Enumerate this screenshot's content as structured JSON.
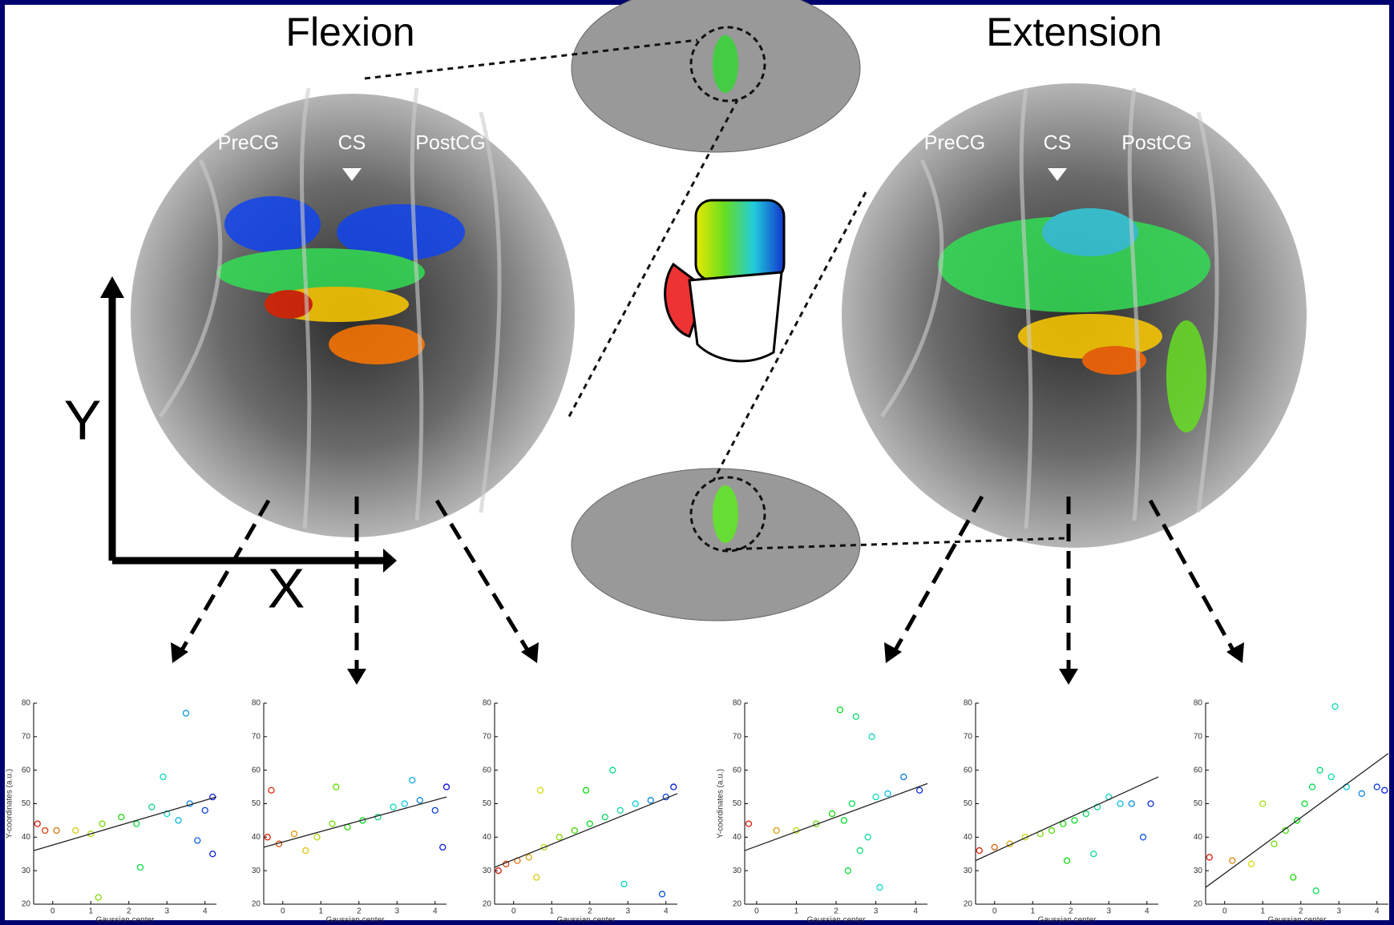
{
  "header": {
    "left_title": "Flexion",
    "right_title": "Extension"
  },
  "left_map": {
    "labels": [
      "PreCG",
      "CS",
      "PostCG"
    ]
  },
  "right_map": {
    "labels": [
      "PreCG",
      "CS",
      "PostCG"
    ]
  },
  "axes_diagram": {
    "y_label": "Y",
    "x_label": "X"
  },
  "chart_data": [
    {
      "type": "scatter",
      "xlabel": "Gaussian center",
      "ylabel": "Y-coordinates (a.u.)",
      "xlim": [
        -0.5,
        4.3
      ],
      "ylim": [
        20,
        80
      ],
      "xticks": [
        0,
        1,
        2,
        3,
        4
      ],
      "yticks": [
        20,
        30,
        40,
        50,
        60,
        70,
        80
      ],
      "x": [
        -0.4,
        -0.2,
        0.1,
        0.6,
        1.0,
        1.3,
        1.8,
        2.2,
        2.6,
        3.0,
        3.3,
        3.6,
        4.0,
        4.2,
        3.5,
        2.3,
        4.2,
        1.2,
        2.9,
        3.8
      ],
      "values": [
        44,
        42,
        42,
        42,
        41,
        44,
        46,
        44,
        49,
        47,
        45,
        50,
        48,
        52,
        77,
        31,
        35,
        22,
        58,
        39
      ],
      "fit_x": [
        -0.5,
        4.3
      ],
      "fit_y": [
        36,
        52
      ]
    },
    {
      "type": "scatter",
      "xlabel": "Gaussian center",
      "xlim": [
        -0.5,
        4.3
      ],
      "ylim": [
        20,
        80
      ],
      "xticks": [
        0,
        1,
        2,
        3,
        4
      ],
      "yticks": [
        20,
        30,
        40,
        50,
        60,
        70,
        80
      ],
      "x": [
        -0.4,
        -0.1,
        0.3,
        0.6,
        0.9,
        1.3,
        1.7,
        2.1,
        2.5,
        2.9,
        3.2,
        3.6,
        4.0,
        4.3,
        -0.3,
        1.4,
        3.4,
        4.2
      ],
      "values": [
        40,
        38,
        41,
        36,
        40,
        44,
        43,
        45,
        46,
        49,
        50,
        51,
        48,
        55,
        54,
        55,
        57,
        37
      ],
      "fit_x": [
        -0.5,
        4.3
      ],
      "fit_y": [
        37,
        52
      ]
    },
    {
      "type": "scatter",
      "xlabel": "Gaussian center",
      "xlim": [
        -0.5,
        4.3
      ],
      "ylim": [
        20,
        80
      ],
      "xticks": [
        0,
        1,
        2,
        3,
        4
      ],
      "yticks": [
        20,
        30,
        40,
        50,
        60,
        70,
        80
      ],
      "x": [
        -0.4,
        -0.2,
        0.1,
        0.4,
        0.8,
        1.2,
        1.6,
        2.0,
        2.4,
        2.8,
        3.2,
        3.6,
        4.0,
        4.2,
        0.7,
        1.9,
        2.6,
        3.9,
        0.6,
        2.9
      ],
      "values": [
        30,
        32,
        33,
        34,
        37,
        40,
        42,
        44,
        46,
        48,
        50,
        51,
        52,
        55,
        54,
        54,
        60,
        23,
        28,
        26
      ],
      "fit_x": [
        -0.5,
        4.3
      ],
      "fit_y": [
        31,
        53
      ]
    },
    {
      "type": "scatter",
      "xlabel": "Gaussian center",
      "ylabel": "Y-coordinates (a.u.)",
      "xlim": [
        -0.3,
        4.3
      ],
      "ylim": [
        20,
        80
      ],
      "xticks": [
        0,
        1,
        2,
        3,
        4
      ],
      "yticks": [
        20,
        30,
        40,
        50,
        60,
        70,
        80
      ],
      "x": [
        -0.2,
        0.5,
        1.0,
        1.5,
        1.9,
        2.2,
        2.4,
        2.6,
        2.8,
        3.0,
        3.3,
        3.7,
        4.1,
        2.1,
        2.5,
        2.9,
        2.3,
        3.1
      ],
      "values": [
        44,
        42,
        42,
        44,
        47,
        45,
        50,
        36,
        40,
        52,
        53,
        58,
        54,
        78,
        76,
        70,
        30,
        25
      ],
      "fit_x": [
        -0.3,
        4.3
      ],
      "fit_y": [
        36,
        56
      ]
    },
    {
      "type": "scatter",
      "xlabel": "Gaussian center",
      "xlim": [
        -0.5,
        4.3
      ],
      "ylim": [
        20,
        80
      ],
      "xticks": [
        0,
        1,
        2,
        3,
        4
      ],
      "yticks": [
        20,
        30,
        40,
        50,
        60,
        70,
        80
      ],
      "x": [
        -0.4,
        0.0,
        0.4,
        0.8,
        1.2,
        1.5,
        1.8,
        2.1,
        2.4,
        2.7,
        3.0,
        3.3,
        3.6,
        4.1,
        1.9,
        2.6,
        3.9
      ],
      "values": [
        36,
        37,
        38,
        40,
        41,
        42,
        44,
        45,
        47,
        49,
        52,
        50,
        50,
        50,
        33,
        35,
        40
      ],
      "fit_x": [
        -0.5,
        4.3
      ],
      "fit_y": [
        33,
        58
      ]
    },
    {
      "type": "scatter",
      "xlabel": "Gaussian center",
      "xlim": [
        -0.5,
        4.3
      ],
      "ylim": [
        20,
        80
      ],
      "xticks": [
        0,
        1,
        2,
        3,
        4
      ],
      "yticks": [
        20,
        30,
        40,
        50,
        60,
        70,
        80
      ],
      "x": [
        -0.4,
        0.2,
        0.7,
        1.0,
        1.3,
        1.6,
        1.9,
        2.1,
        2.3,
        2.5,
        2.8,
        3.2,
        3.6,
        4.0,
        4.2,
        2.4,
        1.8,
        2.9
      ],
      "values": [
        34,
        33,
        32,
        50,
        38,
        42,
        45,
        50,
        55,
        60,
        58,
        55,
        53,
        55,
        54,
        24,
        28,
        79
      ],
      "fit_x": [
        -0.5,
        4.3
      ],
      "fit_y": [
        25,
        65
      ]
    }
  ]
}
